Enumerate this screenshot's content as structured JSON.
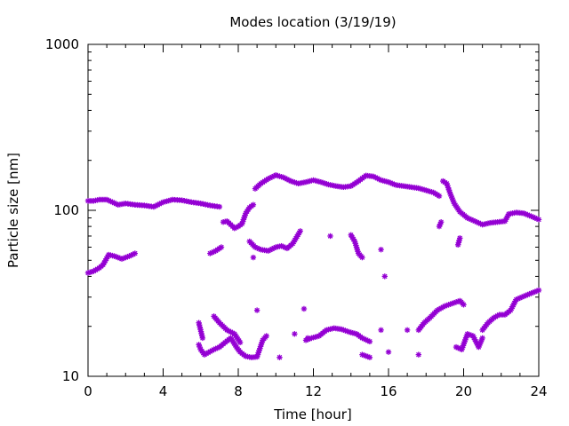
{
  "chart_data": {
    "type": "scatter",
    "title": "Modes location (3/19/19)",
    "xlabel": "Time [hour]",
    "ylabel": "Particle size [nm]",
    "xlim": [
      0,
      24
    ],
    "ylim": [
      10,
      1000
    ],
    "yscale": "log",
    "grid": false,
    "legend": "none",
    "marker": "asterisk",
    "color": "#9400d3",
    "xticks": [
      {
        "value": 0,
        "label": "0"
      },
      {
        "value": 4,
        "label": "4"
      },
      {
        "value": 8,
        "label": "8"
      },
      {
        "value": 12,
        "label": "12"
      },
      {
        "value": 16,
        "label": "16"
      },
      {
        "value": 20,
        "label": "20"
      },
      {
        "value": 24,
        "label": "24"
      }
    ],
    "yticks": [
      {
        "value": 10,
        "label": "10"
      },
      {
        "value": 100,
        "label": "100"
      },
      {
        "value": 1000,
        "label": "1000"
      }
    ],
    "segments": [
      {
        "points": [
          [
            0,
            114
          ],
          [
            0.3,
            114
          ],
          [
            0.6,
            116
          ],
          [
            1.0,
            116
          ],
          [
            1.3,
            112
          ],
          [
            1.6,
            108
          ],
          [
            2.0,
            110
          ],
          [
            2.5,
            108
          ],
          [
            3.0,
            107
          ],
          [
            3.5,
            105
          ],
          [
            4.0,
            112
          ],
          [
            4.5,
            116
          ],
          [
            5.0,
            115
          ],
          [
            5.5,
            112
          ],
          [
            6.0,
            110
          ],
          [
            6.5,
            107
          ],
          [
            7.0,
            105
          ]
        ]
      },
      {
        "points": [
          [
            7.2,
            85
          ],
          [
            7.4,
            86
          ],
          [
            7.6,
            82
          ],
          [
            7.8,
            78
          ],
          [
            8.0,
            80
          ],
          [
            8.2,
            83
          ],
          [
            8.4,
            96
          ],
          [
            8.6,
            104
          ],
          [
            8.8,
            108
          ]
        ]
      },
      {
        "points": [
          [
            8.9,
            135
          ],
          [
            9.2,
            145
          ],
          [
            9.6,
            155
          ],
          [
            10.0,
            163
          ],
          [
            10.4,
            158
          ],
          [
            10.8,
            150
          ],
          [
            11.2,
            145
          ],
          [
            11.6,
            148
          ],
          [
            12.0,
            152
          ],
          [
            12.4,
            148
          ],
          [
            12.8,
            143
          ],
          [
            13.2,
            140
          ],
          [
            13.6,
            138
          ],
          [
            14.0,
            140
          ],
          [
            14.4,
            150
          ],
          [
            14.8,
            162
          ],
          [
            15.2,
            160
          ],
          [
            15.6,
            152
          ],
          [
            16.0,
            148
          ],
          [
            16.4,
            142
          ],
          [
            16.8,
            140
          ],
          [
            17.2,
            138
          ],
          [
            17.6,
            136
          ],
          [
            18.0,
            132
          ],
          [
            18.4,
            128
          ],
          [
            18.7,
            122
          ]
        ]
      },
      {
        "points": [
          [
            18.9,
            150
          ],
          [
            19.1,
            145
          ],
          [
            19.3,
            125
          ],
          [
            19.5,
            110
          ],
          [
            19.8,
            98
          ],
          [
            20.2,
            90
          ],
          [
            20.6,
            86
          ],
          [
            21.0,
            82
          ],
          [
            21.4,
            84
          ],
          [
            21.8,
            85
          ],
          [
            22.2,
            86
          ],
          [
            22.4,
            95
          ],
          [
            22.8,
            97
          ],
          [
            23.2,
            96
          ],
          [
            23.6,
            92
          ],
          [
            24.0,
            88
          ]
        ]
      },
      {
        "points": [
          [
            18.7,
            80
          ],
          [
            18.8,
            85
          ],
          [
            19.7,
            62
          ],
          [
            19.8,
            68
          ]
        ]
      },
      {
        "points": [
          [
            0,
            42
          ],
          [
            0.3,
            43
          ],
          [
            0.6,
            45
          ],
          [
            0.8,
            47
          ],
          [
            1.1,
            54
          ],
          [
            1.4,
            53
          ],
          [
            1.8,
            51
          ],
          [
            2.2,
            53
          ],
          [
            2.5,
            55
          ]
        ]
      },
      {
        "points": [
          [
            6.5,
            55
          ],
          [
            6.8,
            57
          ],
          [
            7.1,
            60
          ]
        ]
      },
      {
        "points": [
          [
            8.6,
            65
          ],
          [
            8.9,
            60
          ],
          [
            9.2,
            58
          ],
          [
            9.6,
            57
          ],
          [
            10.0,
            60
          ],
          [
            10.3,
            61
          ],
          [
            10.6,
            59
          ],
          [
            10.9,
            63
          ],
          [
            11.3,
            75
          ]
        ]
      },
      {
        "points": [
          [
            8.8,
            52
          ],
          [
            12.9,
            70
          ],
          [
            14.0,
            71
          ],
          [
            14.2,
            65
          ],
          [
            14.4,
            55
          ],
          [
            14.6,
            52
          ],
          [
            15.6,
            58
          ],
          [
            15.8,
            40
          ]
        ]
      },
      {
        "points": [
          [
            5.9,
            21
          ],
          [
            6.1,
            17
          ],
          [
            6.7,
            23
          ],
          [
            7.0,
            21
          ],
          [
            7.4,
            19
          ],
          [
            7.8,
            18
          ],
          [
            8.1,
            16
          ],
          [
            9.0,
            25
          ]
        ]
      },
      {
        "points": [
          [
            5.9,
            15.5
          ],
          [
            6.0,
            14.5
          ],
          [
            6.2,
            13.5
          ],
          [
            6.7,
            14.5
          ],
          [
            7.0,
            15
          ],
          [
            7.3,
            16
          ],
          [
            7.6,
            17
          ],
          [
            7.9,
            15
          ],
          [
            8.1,
            14
          ],
          [
            8.4,
            13.2
          ],
          [
            8.7,
            13
          ],
          [
            9.0,
            13.1
          ],
          [
            9.3,
            16.5
          ],
          [
            9.5,
            17.5
          ],
          [
            10.2,
            13
          ],
          [
            11.0,
            18
          ],
          [
            11.5,
            25.5
          ],
          [
            11.7,
            17
          ]
        ]
      },
      {
        "points": [
          [
            11.6,
            16.5
          ],
          [
            11.9,
            17
          ],
          [
            12.3,
            17.5
          ],
          [
            12.7,
            19
          ],
          [
            13.1,
            19.5
          ],
          [
            13.5,
            19.2
          ],
          [
            13.9,
            18.5
          ],
          [
            14.3,
            18
          ],
          [
            14.6,
            17
          ],
          [
            15.0,
            16.2
          ]
        ]
      },
      {
        "points": [
          [
            14.6,
            13.5
          ],
          [
            15.0,
            13
          ],
          [
            15.6,
            19
          ],
          [
            16.0,
            14
          ],
          [
            17.0,
            19
          ],
          [
            17.6,
            13.5
          ]
        ]
      },
      {
        "points": [
          [
            17.6,
            19
          ],
          [
            17.9,
            21
          ],
          [
            18.2,
            22.5
          ],
          [
            18.6,
            25
          ],
          [
            19.0,
            26.5
          ],
          [
            19.4,
            27.5
          ],
          [
            19.8,
            28.5
          ],
          [
            20.0,
            27
          ]
        ]
      },
      {
        "points": [
          [
            19.6,
            15
          ],
          [
            19.9,
            14.5
          ],
          [
            20.2,
            18
          ],
          [
            20.5,
            17.5
          ],
          [
            20.8,
            15
          ],
          [
            21.0,
            17
          ]
        ]
      },
      {
        "points": [
          [
            21.0,
            19
          ],
          [
            21.3,
            21
          ],
          [
            21.6,
            22.5
          ],
          [
            21.9,
            23.5
          ],
          [
            22.2,
            23.5
          ],
          [
            22.5,
            25
          ],
          [
            22.8,
            29
          ],
          [
            23.1,
            30
          ],
          [
            23.4,
            31
          ],
          [
            23.7,
            32
          ],
          [
            24.0,
            33
          ]
        ]
      }
    ]
  }
}
